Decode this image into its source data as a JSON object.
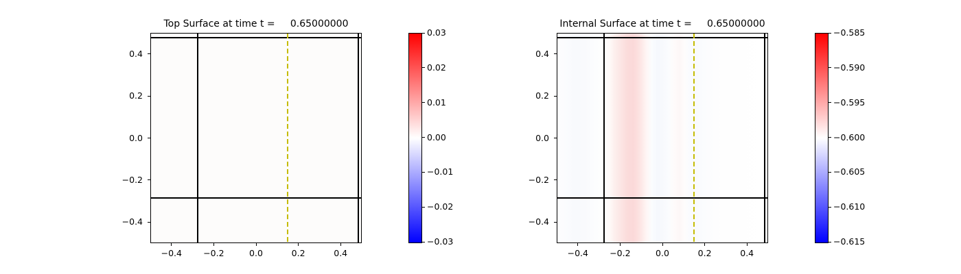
{
  "figure": {
    "background": "#ffffff",
    "text_color": "#000000"
  },
  "chart_data": [
    {
      "type": "heatmap",
      "panel": "left",
      "title": "Top Surface at time t =     0.65000000",
      "xlim": [
        -0.5,
        0.5
      ],
      "ylim": [
        -0.5,
        0.5
      ],
      "grid": false,
      "xtick_values": [
        -0.4,
        -0.2,
        0.0,
        0.2,
        0.4
      ],
      "xtick_labels": [
        "−0.4",
        "−0.2",
        "0.0",
        "0.2",
        "0.4"
      ],
      "ytick_values": [
        0.4,
        0.2,
        0.0,
        -0.2,
        -0.4
      ],
      "ytick_labels": [
        "0.4",
        "0.2",
        "0.0",
        "−0.2",
        "−0.4"
      ],
      "field": {
        "kind": "uniform",
        "color": "#fdfcfb",
        "approx_value": 0.0
      },
      "overlays": {
        "solid_vlines_x": [
          -0.28,
          0.48
        ],
        "solid_hlines_y": [
          -0.28,
          0.48
        ],
        "line_color": "#000000",
        "dashed_vline_x": 0.145,
        "dashed_line_color": "#c5bc00"
      },
      "colorbar": {
        "cmap": "bwr",
        "vmin": -0.03,
        "vmax": 0.03,
        "tick_values": [
          0.03,
          0.02,
          0.01,
          0.0,
          -0.01,
          -0.02,
          -0.03
        ],
        "tick_labels": [
          "0.03",
          "0.02",
          "0.01",
          "0.00",
          "−0.01",
          "−0.02",
          "−0.03"
        ],
        "top_color": "#ff0000",
        "mid_color": "#ffffff",
        "bottom_color": "#0000ff"
      }
    },
    {
      "type": "heatmap",
      "panel": "right",
      "title": "Internal Surface at time t =     0.65000000",
      "xlim": [
        -0.5,
        0.5
      ],
      "ylim": [
        -0.5,
        0.5
      ],
      "grid": false,
      "xtick_values": [
        -0.4,
        -0.2,
        0.0,
        0.2,
        0.4
      ],
      "xtick_labels": [
        "−0.4",
        "−0.2",
        "0.0",
        "0.2",
        "0.4"
      ],
      "ytick_values": [
        0.4,
        0.2,
        0.0,
        -0.2,
        -0.4
      ],
      "ytick_labels": [
        "0.4",
        "0.2",
        "0.0",
        "−0.2",
        "−0.4"
      ],
      "field": {
        "kind": "vertical_gradient_stripes",
        "stops": [
          {
            "x": -0.5,
            "color": "#fdfdfe"
          },
          {
            "x": -0.46,
            "color": "#fbfcfe"
          },
          {
            "x": -0.42,
            "color": "#f8fafd"
          },
          {
            "x": -0.37,
            "color": "#f9fafd"
          },
          {
            "x": -0.32,
            "color": "#fcfdfe"
          },
          {
            "x": -0.28,
            "color": "#fefefe"
          },
          {
            "x": -0.25,
            "color": "#fef9f8"
          },
          {
            "x": -0.23,
            "color": "#fdf0ee"
          },
          {
            "x": -0.2,
            "color": "#fce6e5"
          },
          {
            "x": -0.17,
            "color": "#fbdcdb"
          },
          {
            "x": -0.14,
            "color": "#fbd9d9"
          },
          {
            "x": -0.12,
            "color": "#fcdfde"
          },
          {
            "x": -0.1,
            "color": "#fde8e7"
          },
          {
            "x": -0.075,
            "color": "#fef6f5"
          },
          {
            "x": -0.05,
            "color": "#fbfcfe"
          },
          {
            "x": -0.025,
            "color": "#f6f8fd"
          },
          {
            "x": 0.0,
            "color": "#f7f9fd"
          },
          {
            "x": 0.03,
            "color": "#fbfcfe"
          },
          {
            "x": 0.055,
            "color": "#fefbfb"
          },
          {
            "x": 0.08,
            "color": "#fdf7f7"
          },
          {
            "x": 0.105,
            "color": "#fefcfc"
          },
          {
            "x": 0.13,
            "color": "#fafbfe"
          },
          {
            "x": 0.16,
            "color": "#f9fafe"
          },
          {
            "x": 0.2,
            "color": "#fbfcfe"
          },
          {
            "x": 0.25,
            "color": "#fdfdfe"
          },
          {
            "x": 0.3,
            "color": "#fefefe"
          },
          {
            "x": 0.5,
            "color": "#ffffff"
          }
        ],
        "approx_profile": {
          "x": [
            -0.5,
            -0.42,
            -0.28,
            -0.2,
            -0.14,
            -0.1,
            -0.05,
            -0.025,
            0.0,
            0.08,
            0.16,
            0.3,
            0.5
          ],
          "value": [
            -0.6,
            -0.6003,
            -0.6,
            -0.5989,
            -0.5982,
            -0.5989,
            -0.6,
            -0.6004,
            -0.6003,
            -0.5996,
            -0.6003,
            -0.6,
            -0.6
          ]
        }
      },
      "overlays": {
        "solid_vlines_x": [
          -0.28,
          0.48
        ],
        "solid_hlines_y": [
          -0.28,
          0.48
        ],
        "line_color": "#000000",
        "dashed_vline_x": 0.145,
        "dashed_line_color": "#c5bc00"
      },
      "colorbar": {
        "cmap": "bwr",
        "vmin": -0.615,
        "vmax": -0.585,
        "tick_values": [
          -0.585,
          -0.59,
          -0.595,
          -0.6,
          -0.605,
          -0.61,
          -0.615
        ],
        "tick_labels": [
          "−0.585",
          "−0.590",
          "−0.595",
          "−0.600",
          "−0.605",
          "−0.610",
          "−0.615"
        ],
        "top_color": "#ff0000",
        "mid_color": "#ffffff",
        "bottom_color": "#0000ff"
      }
    }
  ]
}
